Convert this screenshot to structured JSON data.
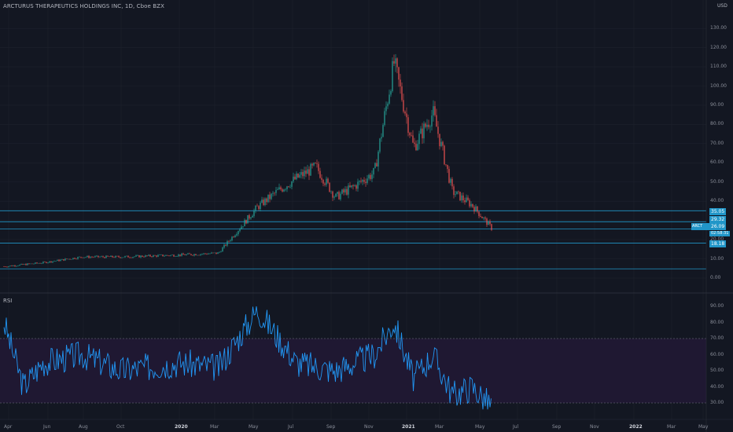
{
  "title": "ARCTURUS THERAPEUTICS HOLDINGS INC, 1D, Cboe BZX",
  "currency": "USD",
  "rsi_label": "RSI",
  "price_axis": [
    "130.00",
    "120.00",
    "110.00",
    "100.00",
    "90.00",
    "80.00",
    "70.00",
    "60.00",
    "50.00",
    "40.00",
    "20.00",
    "10.00",
    "0.00"
  ],
  "rsi_axis": [
    "90.00",
    "80.00",
    "70.00",
    "60.00",
    "50.00",
    "40.00",
    "30.00"
  ],
  "time_axis": [
    {
      "label": "Apr",
      "bold": false
    },
    {
      "label": "Jun",
      "bold": false
    },
    {
      "label": "Aug",
      "bold": false
    },
    {
      "label": "Oct",
      "bold": false
    },
    {
      "label": "2020",
      "bold": true
    },
    {
      "label": "Mar",
      "bold": false
    },
    {
      "label": "May",
      "bold": false
    },
    {
      "label": "Jul",
      "bold": false
    },
    {
      "label": "Sep",
      "bold": false
    },
    {
      "label": "Nov",
      "bold": false
    },
    {
      "label": "2021",
      "bold": true
    },
    {
      "label": "Mar",
      "bold": false
    },
    {
      "label": "May",
      "bold": false
    },
    {
      "label": "Jul",
      "bold": false
    },
    {
      "label": "Sep",
      "bold": false
    },
    {
      "label": "Nov",
      "bold": false
    },
    {
      "label": "2022",
      "bold": true
    },
    {
      "label": "Mar",
      "bold": false
    },
    {
      "label": "May",
      "bold": false
    }
  ],
  "horizontal_levels": [
    {
      "value": 35.05,
      "label": "35.05"
    },
    {
      "value": 29.32,
      "label": "29.32"
    },
    {
      "value": 25.5,
      "label": ""
    },
    {
      "value": 18.18,
      "label": "18.18"
    },
    {
      "value": 4.8,
      "label": ""
    }
  ],
  "tags": {
    "symbol": "ARCT",
    "last": "26.09",
    "countdown": "02:58:31",
    "level1": "35.05",
    "level2": "29.32",
    "level3": "18.18"
  },
  "rsi_band": {
    "upper": 70,
    "lower": 30
  },
  "colors": {
    "up": "#26a69a",
    "down": "#ef5350",
    "rsi": "#2196f3",
    "band": "#1f1832",
    "hline": "#2196c8",
    "bg": "#131722"
  },
  "chart_data": {
    "type": "candlestick",
    "title": "ARCTURUS THERAPEUTICS HOLDINGS INC, 1D, Cboe BZX",
    "ylim": [
      0,
      130
    ],
    "x_range": [
      "2019-04",
      "2022-05"
    ],
    "approx_close_path": [
      {
        "date": "2019-04",
        "close": 6
      },
      {
        "date": "2019-06",
        "close": 8
      },
      {
        "date": "2019-08",
        "close": 11
      },
      {
        "date": "2019-10",
        "close": 11
      },
      {
        "date": "2020-01",
        "close": 12
      },
      {
        "date": "2020-03",
        "close": 13
      },
      {
        "date": "2020-05",
        "close": 37
      },
      {
        "date": "2020-06",
        "close": 45
      },
      {
        "date": "2020-07",
        "close": 52
      },
      {
        "date": "2020-08",
        "close": 58
      },
      {
        "date": "2020-09",
        "close": 42
      },
      {
        "date": "2020-10",
        "close": 48
      },
      {
        "date": "2020-11",
        "close": 55
      },
      {
        "date": "2020-12",
        "close": 112
      },
      {
        "date": "2021-01",
        "close": 68
      },
      {
        "date": "2021-02",
        "close": 86
      },
      {
        "date": "2021-03",
        "close": 45
      },
      {
        "date": "2021-04",
        "close": 38
      },
      {
        "date": "2021-05",
        "close": 26.09
      }
    ],
    "rsi_series": [
      {
        "date": "2019-04",
        "rsi": 80
      },
      {
        "date": "2019-05",
        "rsi": 40
      },
      {
        "date": "2019-06",
        "rsi": 55
      },
      {
        "date": "2019-08",
        "rsi": 60
      },
      {
        "date": "2019-10",
        "rsi": 50
      },
      {
        "date": "2020-01",
        "rsi": 55
      },
      {
        "date": "2020-03",
        "rsi": 52
      },
      {
        "date": "2020-05",
        "rsi": 88
      },
      {
        "date": "2020-07",
        "rsi": 55
      },
      {
        "date": "2020-09",
        "rsi": 50
      },
      {
        "date": "2020-11",
        "rsi": 60
      },
      {
        "date": "2020-12",
        "rsi": 80
      },
      {
        "date": "2021-01",
        "rsi": 45
      },
      {
        "date": "2021-02",
        "rsi": 60
      },
      {
        "date": "2021-03",
        "rsi": 35
      },
      {
        "date": "2021-04",
        "rsi": 40
      },
      {
        "date": "2021-05",
        "rsi": 28
      }
    ]
  }
}
